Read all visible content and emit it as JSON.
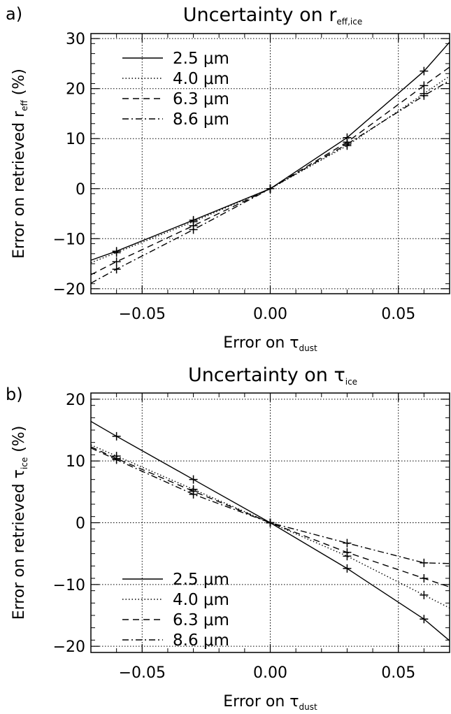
{
  "chart_data": [
    {
      "type": "line",
      "panel_label": "a)",
      "title": "Uncertainty on r",
      "title_subscript": "eff,ice",
      "xlabel": "Error on τ",
      "xlabel_subscript": "dust",
      "ylabel": "Error on retrieved r",
      "ylabel_subscript": "eff",
      "ylabel_suffix": " (%)",
      "xlim": [
        -0.07,
        0.07
      ],
      "ylim": [
        -21,
        31
      ],
      "xticks": [
        -0.05,
        0.0,
        0.05
      ],
      "xtick_labels": [
        "−0.05",
        "0.00",
        "0.05"
      ],
      "yticks": [
        -20,
        -10,
        0,
        10,
        20,
        30
      ],
      "ytick_labels": [
        "−20",
        "−10",
        "0",
        "10",
        "20",
        "30"
      ],
      "grid": true,
      "legend_position": "top-left",
      "series": [
        {
          "name": "2.5 μm",
          "style": "solid",
          "x": [
            -0.07,
            -0.06,
            -0.03,
            0.0,
            0.03,
            0.06,
            0.07
          ],
          "y": [
            -14.3,
            -12.5,
            -6.3,
            0.0,
            10.2,
            23.5,
            29.3
          ],
          "markers_x": [
            -0.06,
            -0.03,
            0.0,
            0.03,
            0.06
          ],
          "markers_y": [
            -12.5,
            -6.3,
            0.0,
            10.2,
            23.5
          ]
        },
        {
          "name": "4.0 μm",
          "style": "dotted",
          "x": [
            -0.07,
            -0.06,
            -0.03,
            0.0,
            0.03,
            0.06,
            0.07
          ],
          "y": [
            -14.8,
            -12.8,
            -6.6,
            0.0,
            8.6,
            19.0,
            22.5
          ],
          "markers_x": [
            -0.06,
            -0.03,
            0.0,
            0.03,
            0.06
          ],
          "markers_y": [
            -12.8,
            -6.6,
            0.0,
            8.6,
            19.0
          ]
        },
        {
          "name": "6.3 μm",
          "style": "dashed",
          "x": [
            -0.07,
            -0.06,
            -0.03,
            0.0,
            0.03,
            0.06,
            0.07
          ],
          "y": [
            -17.2,
            -14.6,
            -7.4,
            0.0,
            9.3,
            20.6,
            24.3
          ],
          "markers_x": [
            -0.06,
            -0.03,
            0.0,
            0.03,
            0.06
          ],
          "markers_y": [
            -14.6,
            -7.4,
            0.0,
            9.3,
            20.6
          ]
        },
        {
          "name": "8.6 μm",
          "style": "dashdot",
          "x": [
            -0.07,
            -0.06,
            -0.03,
            0.0,
            0.03,
            0.06,
            0.07
          ],
          "y": [
            -18.9,
            -16.1,
            -8.2,
            0.0,
            8.9,
            18.6,
            21.6
          ],
          "markers_x": [
            -0.06,
            -0.03,
            0.0,
            0.03,
            0.06
          ],
          "markers_y": [
            -16.1,
            -8.2,
            0.0,
            8.9,
            18.6
          ]
        }
      ]
    },
    {
      "type": "line",
      "panel_label": "b)",
      "title": "Uncertainty on τ",
      "title_subscript": "ice",
      "xlabel": "Error on τ",
      "xlabel_subscript": "dust",
      "ylabel": "Error on retrieved τ",
      "ylabel_subscript": "ice",
      "ylabel_suffix": " (%)",
      "xlim": [
        -0.07,
        0.07
      ],
      "ylim": [
        -21,
        21
      ],
      "xticks": [
        -0.05,
        0.0,
        0.05
      ],
      "xtick_labels": [
        "−0.05",
        "0.00",
        "0.05"
      ],
      "yticks": [
        -20,
        -10,
        0,
        10,
        20
      ],
      "ytick_labels": [
        "−20",
        "−10",
        "0",
        "10",
        "20"
      ],
      "grid": true,
      "legend_position": "bottom-left",
      "series": [
        {
          "name": "2.5 μm",
          "style": "solid",
          "x": [
            -0.07,
            -0.06,
            -0.03,
            0.0,
            0.03,
            0.06,
            0.07
          ],
          "y": [
            16.4,
            14.0,
            7.0,
            0.0,
            -7.4,
            -15.6,
            -19.1
          ],
          "markers_x": [
            -0.06,
            -0.03,
            0.0,
            0.03,
            0.06
          ],
          "markers_y": [
            14.0,
            7.0,
            0.0,
            -7.4,
            -15.6
          ]
        },
        {
          "name": "4.0 μm",
          "style": "dotted",
          "x": [
            -0.07,
            -0.06,
            -0.03,
            0.0,
            0.03,
            0.06,
            0.07
          ],
          "y": [
            12.6,
            10.8,
            5.4,
            0.0,
            -5.4,
            -11.7,
            -13.8
          ],
          "markers_x": [
            -0.06,
            -0.03,
            0.0,
            0.03,
            0.06
          ],
          "markers_y": [
            10.8,
            5.4,
            0.0,
            -5.4,
            -11.7
          ]
        },
        {
          "name": "6.3 μm",
          "style": "dashed",
          "x": [
            -0.07,
            -0.06,
            -0.03,
            0.0,
            0.03,
            0.06,
            0.07
          ],
          "y": [
            12.3,
            10.4,
            5.1,
            0.0,
            -4.8,
            -9.0,
            -10.4
          ],
          "markers_x": [
            -0.06,
            -0.03,
            0.0,
            0.03,
            0.06
          ],
          "markers_y": [
            10.4,
            5.1,
            0.0,
            -4.8,
            -9.0
          ]
        },
        {
          "name": "8.6 μm",
          "style": "dashdot",
          "x": [
            -0.07,
            -0.06,
            -0.03,
            0.0,
            0.03,
            0.06,
            0.07
          ],
          "y": [
            12.1,
            10.2,
            4.6,
            0.0,
            -3.3,
            -6.5,
            -6.6
          ],
          "markers_x": [
            -0.06,
            -0.03,
            0.0,
            0.03,
            0.06
          ],
          "markers_y": [
            10.2,
            4.6,
            0.0,
            -3.3,
            -6.5
          ]
        }
      ]
    }
  ]
}
